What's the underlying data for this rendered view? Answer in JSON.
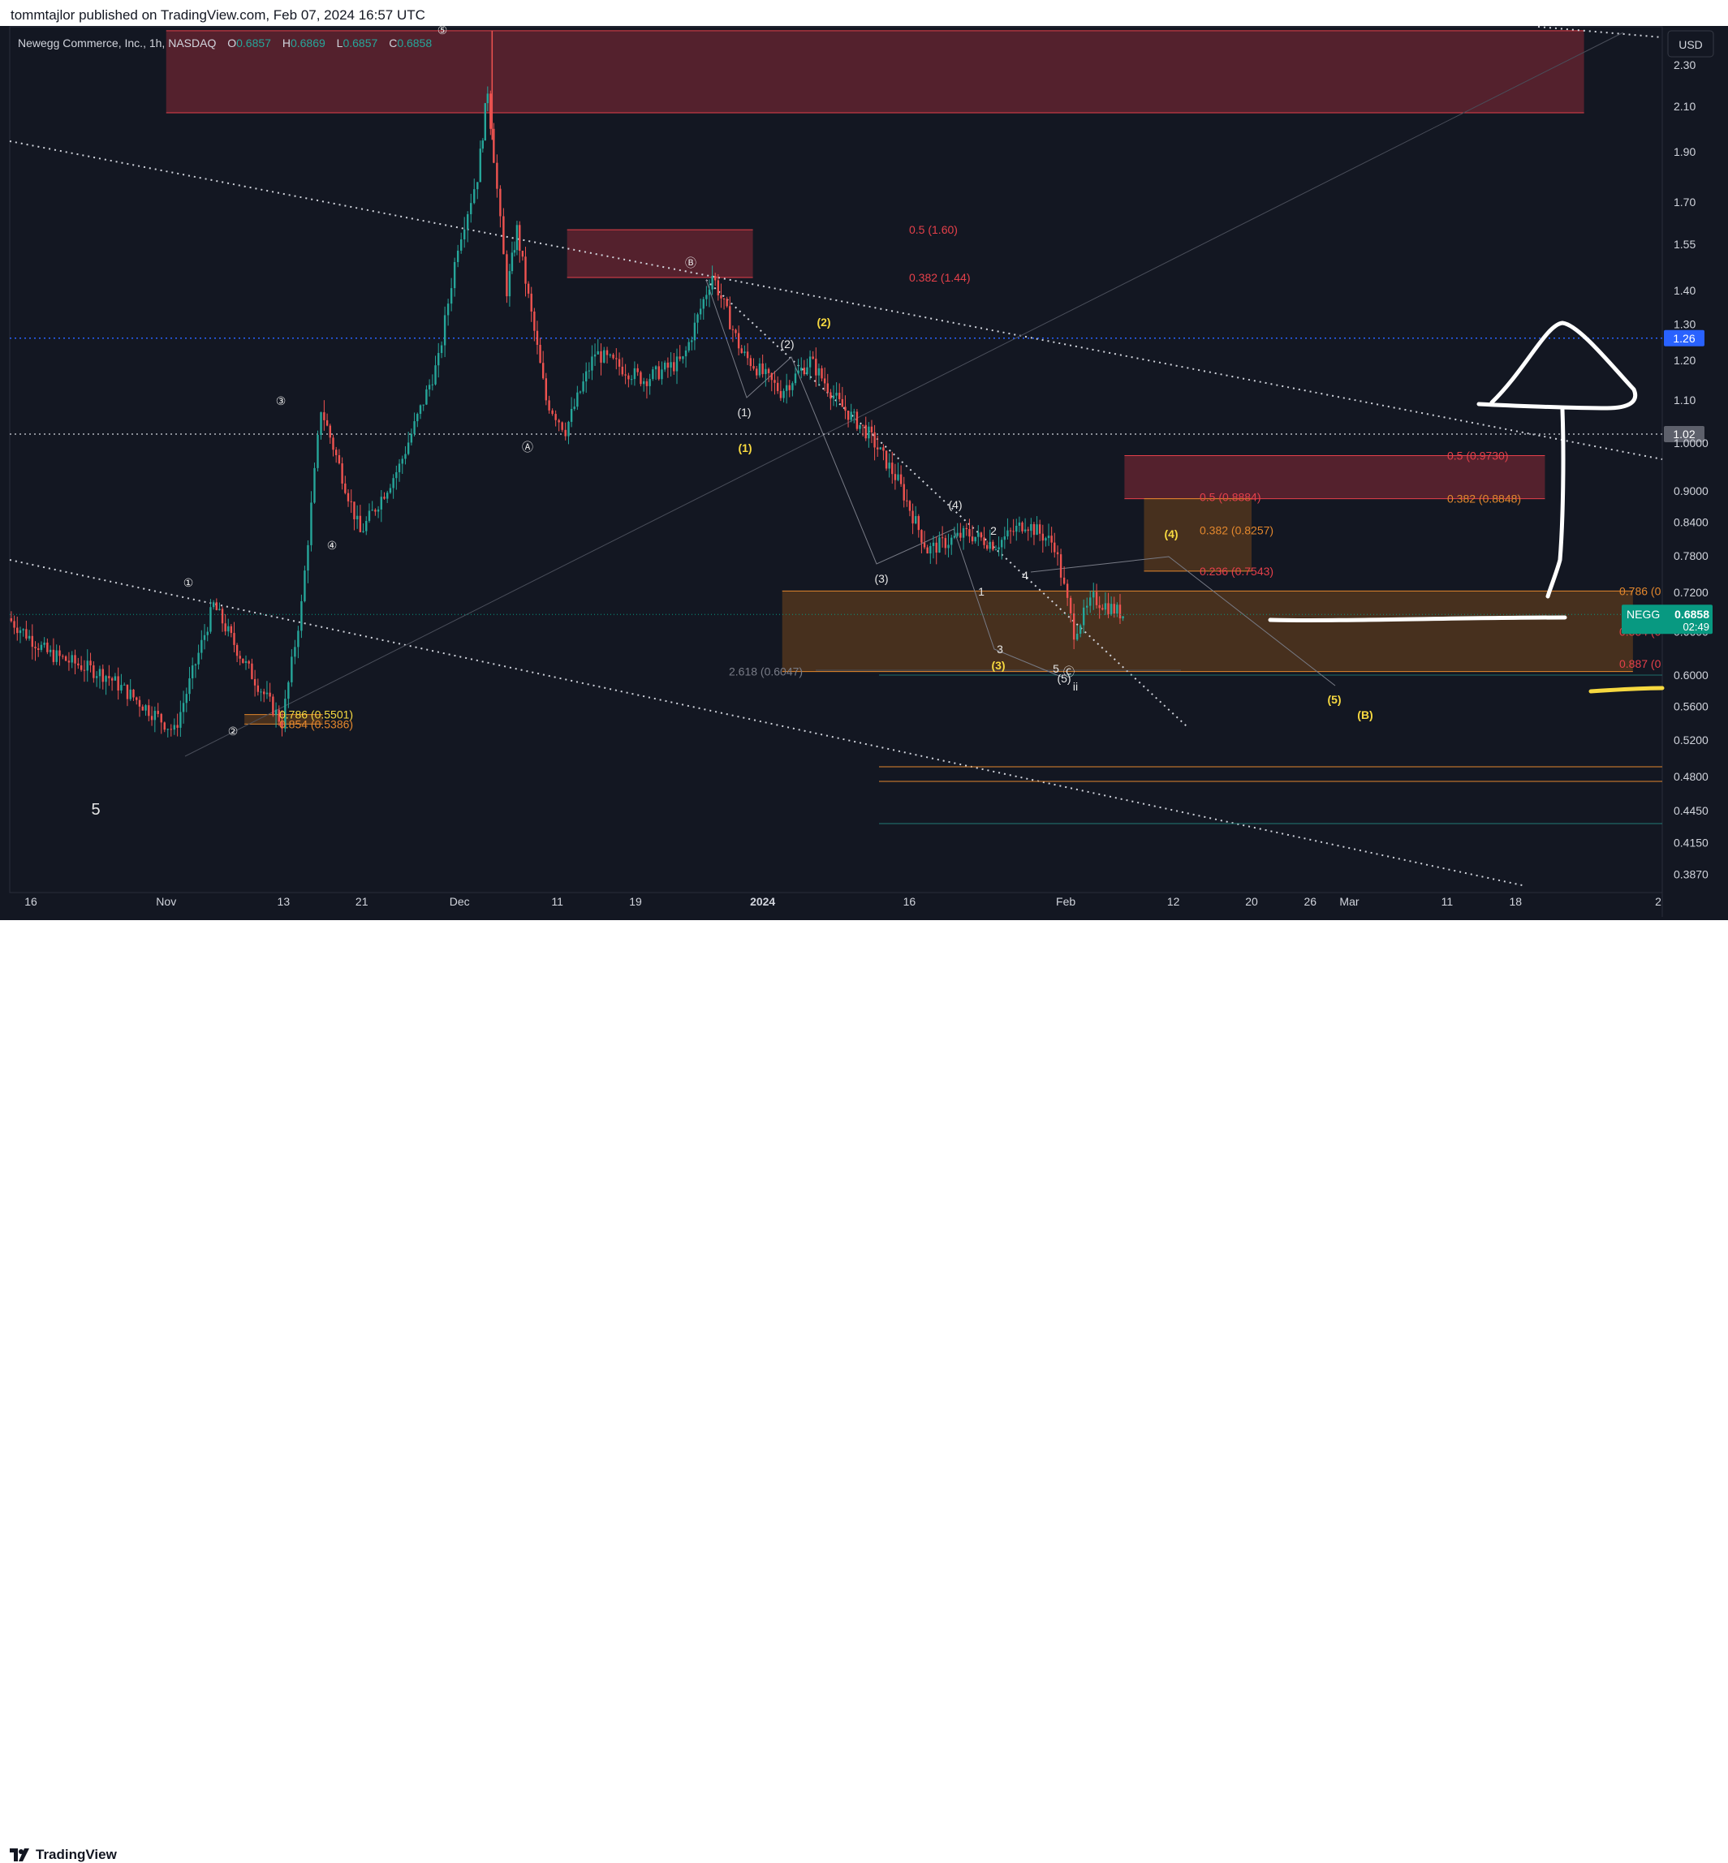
{
  "header": {
    "published_by": "tommtajlor published on TradingView.com, Feb 07, 2024 16:57 UTC"
  },
  "symbol": {
    "name": "Newegg Commerce, Inc.",
    "interval": "1h",
    "exchange": "NASDAQ",
    "o_label": "O",
    "o_value": "0.6857",
    "h_label": "H",
    "h_value": "0.6869",
    "l_label": "L",
    "l_value": "0.6857",
    "c_label": "C",
    "c_value": "0.6858",
    "ticker": "NEGG",
    "countdown": "02:49"
  },
  "currency_button": "USD",
  "footer": {
    "brand": "TradingView"
  },
  "colors": {
    "background": "#131722",
    "up": "#26a69a",
    "down": "#ef5350",
    "red_zone": "#6b2631",
    "orange_zone": "#5a3a1e",
    "fib_red": "#e5404a",
    "fib_orange": "#e3872d",
    "wave_yellow": "#f7d940",
    "price_line_blue": "#2962ff",
    "last_price_badge": "#089981"
  },
  "chart_data": {
    "type": "candlestick",
    "title": "Newegg Commerce, Inc., 1h, NASDAQ",
    "y_scale": "log",
    "ylim": [
      0.35,
      2.55
    ],
    "y_ticks": [
      "2.30",
      "2.10",
      "1.90",
      "1.70",
      "1.55",
      "1.40",
      "1.30",
      "1.20",
      "1.10",
      "1.0000",
      "0.9000",
      "0.8400",
      "0.7800",
      "0.7200",
      "0.6600",
      "0.6000",
      "0.5600",
      "0.5200",
      "0.4800",
      "0.4450",
      "0.4150",
      "0.3870"
    ],
    "x_ticks": [
      "16",
      "Nov",
      "13",
      "21",
      "Dec",
      "11",
      "19",
      "2024",
      "16",
      "Feb",
      "12",
      "20",
      "26",
      "Mar",
      "11",
      "18",
      "2"
    ],
    "x_range": [
      "2023-10-16",
      "2024-04-02"
    ],
    "price_path": [
      {
        "date": "2023-10-16",
        "price": 0.68
      },
      {
        "date": "2023-10-20",
        "price": 0.63
      },
      {
        "date": "2023-10-26",
        "price": 0.6
      },
      {
        "date": "2023-10-31",
        "price": 0.55
      },
      {
        "date": "2023-11-02",
        "price": 0.53
      },
      {
        "date": "2023-11-06",
        "price": 0.7
      },
      {
        "date": "2023-11-09",
        "price": 0.62
      },
      {
        "date": "2023-11-13",
        "price": 0.54
      },
      {
        "date": "2023-11-15",
        "price": 0.7
      },
      {
        "date": "2023-11-17",
        "price": 1.08
      },
      {
        "date": "2023-11-21",
        "price": 0.82
      },
      {
        "date": "2023-11-25",
        "price": 0.95
      },
      {
        "date": "2023-11-29",
        "price": 1.2
      },
      {
        "date": "2023-12-01",
        "price": 1.55
      },
      {
        "date": "2023-12-03",
        "price": 1.8
      },
      {
        "date": "2023-12-04",
        "price": 2.18
      },
      {
        "date": "2023-12-06",
        "price": 1.4
      },
      {
        "date": "2023-12-07",
        "price": 1.6
      },
      {
        "date": "2023-12-10",
        "price": 1.1
      },
      {
        "date": "2023-12-12",
        "price": 1.03
      },
      {
        "date": "2023-12-15",
        "price": 1.22
      },
      {
        "date": "2023-12-20",
        "price": 1.15
      },
      {
        "date": "2023-12-24",
        "price": 1.2
      },
      {
        "date": "2023-12-27",
        "price": 1.45
      },
      {
        "date": "2023-12-30",
        "price": 1.22
      },
      {
        "date": "2024-01-03",
        "price": 1.12
      },
      {
        "date": "2024-01-06",
        "price": 1.2
      },
      {
        "date": "2024-01-09",
        "price": 1.09
      },
      {
        "date": "2024-01-12",
        "price": 1.02
      },
      {
        "date": "2024-01-15",
        "price": 0.92
      },
      {
        "date": "2024-01-18",
        "price": 0.79
      },
      {
        "date": "2024-01-22",
        "price": 0.82
      },
      {
        "date": "2024-01-25",
        "price": 0.8
      },
      {
        "date": "2024-01-28",
        "price": 0.84
      },
      {
        "date": "2024-01-31",
        "price": 0.8
      },
      {
        "date": "2024-02-02",
        "price": 0.66
      },
      {
        "date": "2024-02-04",
        "price": 0.71
      },
      {
        "date": "2024-02-07",
        "price": 0.6858
      }
    ],
    "horizontal_lines": [
      {
        "price": 1.26,
        "style": "dotted",
        "color": "#2962ff",
        "label": "1.26"
      },
      {
        "price": 1.02,
        "style": "dotted",
        "color": "#b2b5be",
        "label": "1.02"
      }
    ],
    "zones": [
      {
        "from": "2023-11-01",
        "to": "2024-03-25",
        "low": 2.07,
        "high": 2.48,
        "color": "red"
      },
      {
        "from": "2023-12-12",
        "to": "2023-12-31",
        "low": 1.44,
        "high": 1.6,
        "color": "red"
      },
      {
        "from": "2024-02-07",
        "to": "2024-03-21",
        "low": 0.8848,
        "high": 0.973,
        "color": "red"
      },
      {
        "from": "2024-02-09",
        "to": "2024-02-20",
        "low": 0.7543,
        "high": 0.8848,
        "color": "orange"
      },
      {
        "from": "2024-01-03",
        "to": "2024-03-30",
        "low": 0.6047,
        "high": 0.722,
        "color": "orange"
      },
      {
        "from": "2023-11-09",
        "to": "2023-11-17",
        "low": 0.5386,
        "high": 0.5501,
        "color": "orange"
      }
    ],
    "fib_labels": [
      {
        "text": "0.5 (1.60)",
        "price": 1.6,
        "color": "red"
      },
      {
        "text": "0.382 (1.44)",
        "price": 1.44,
        "color": "red"
      },
      {
        "text": "0.5 (0.9730)",
        "price": 0.973,
        "color": "red"
      },
      {
        "text": "0.5 (0.8884)",
        "price": 0.8884,
        "color": "red"
      },
      {
        "text": "0.382 (0.8848)",
        "price": 0.8848,
        "color": "orange"
      },
      {
        "text": "0.382 (0.8257)",
        "price": 0.8257,
        "color": "orange"
      },
      {
        "text": "0.236 (0.7543)",
        "price": 0.7543,
        "color": "red"
      },
      {
        "text": "0.786 (0",
        "price": 0.722,
        "color": "orange"
      },
      {
        "text": "0.854 (0",
        "price": 0.66,
        "color": "red"
      },
      {
        "text": "0.887 (0",
        "price": 0.615,
        "color": "red"
      },
      {
        "text": "2.618 (0.6047)",
        "price": 0.6047,
        "color": "gray"
      },
      {
        "text": "0.786 (0.5501)",
        "price": 0.5501,
        "color": "yellow"
      },
      {
        "text": "0.854 (0.5386)",
        "price": 0.5386,
        "color": "orange"
      }
    ],
    "wave_labels": [
      {
        "text": "⑤",
        "color": "white"
      },
      {
        "text": "③",
        "color": "white"
      },
      {
        "text": "④",
        "color": "white"
      },
      {
        "text": "①",
        "color": "white"
      },
      {
        "text": "②",
        "color": "white"
      },
      {
        "text": "Ⓐ",
        "color": "white"
      },
      {
        "text": "Ⓑ",
        "color": "white"
      },
      {
        "text": "Ⓒ",
        "color": "white"
      },
      {
        "text": "(1)",
        "color": "white"
      },
      {
        "text": "(2)",
        "color": "white"
      },
      {
        "text": "(3)",
        "color": "white"
      },
      {
        "text": "(4)",
        "color": "white"
      },
      {
        "text": "(5)",
        "color": "white"
      },
      {
        "text": "(1)",
        "color": "yellow"
      },
      {
        "text": "(2)",
        "color": "yellow"
      },
      {
        "text": "(3)",
        "color": "yellow"
      },
      {
        "text": "(4)",
        "color": "yellow"
      },
      {
        "text": "(5)",
        "color": "yellow"
      },
      {
        "text": "(B)",
        "color": "yellow"
      },
      {
        "text": "1",
        "color": "white"
      },
      {
        "text": "2",
        "color": "white"
      },
      {
        "text": "3",
        "color": "white"
      },
      {
        "text": "4",
        "color": "white"
      },
      {
        "text": "5",
        "color": "white"
      },
      {
        "text": "ii",
        "color": "white"
      },
      {
        "text": "5",
        "color": "white"
      }
    ],
    "last_price": 0.6858,
    "grid": false
  }
}
